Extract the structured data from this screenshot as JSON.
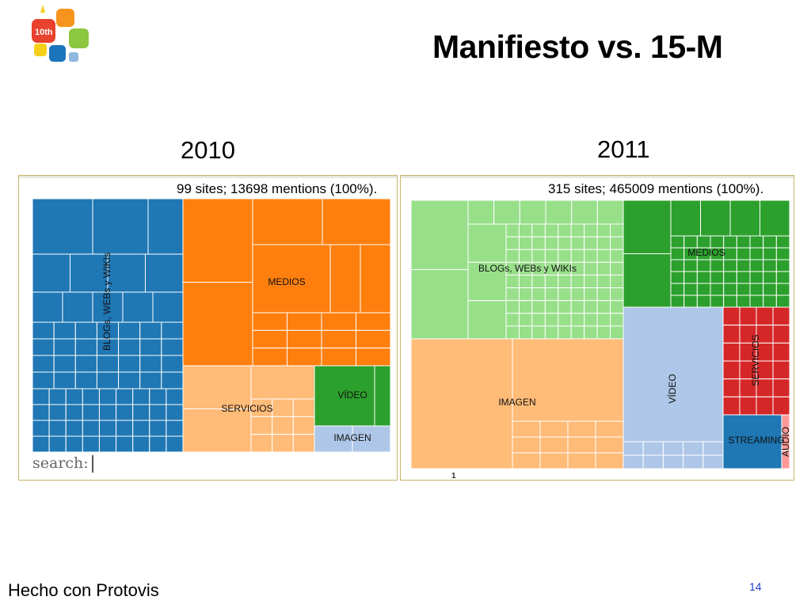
{
  "slide": {
    "title": "Manifiesto vs. 15-M",
    "page_number": "14",
    "footer": "Hecho con Protovis",
    "logo_text": "10th",
    "logo_colors": [
      "#f7941d",
      "#e8412d",
      "#8dc63f",
      "#f5d019",
      "#1b75bc",
      "#8fb8e0"
    ]
  },
  "chart_data": [
    {
      "type": "treemap",
      "year": "2010",
      "summary": "99 sites; 13698 mentions (100%).",
      "search_label": "search:",
      "categories": [
        {
          "name": "BLOGs, WEBs y WIKIs",
          "label_orientation": "vertical",
          "color": "#1f77b4"
        },
        {
          "name": "MEDIOS",
          "label_orientation": "horizontal",
          "color": "#ff7f0e"
        },
        {
          "name": "SERVICIOS",
          "label_orientation": "horizontal",
          "color": "#ffbb78"
        },
        {
          "name": "VÍDEO",
          "label_orientation": "horizontal",
          "color": "#2ca02c"
        },
        {
          "name": "IMAGEN",
          "label_orientation": "horizontal",
          "color": "#aec7e8"
        }
      ]
    },
    {
      "type": "treemap",
      "year": "2011",
      "summary": "315 sites; 465009 mentions (100%).",
      "axis_marker": "1",
      "categories": [
        {
          "name": "BLOGs, WEBs y WIKIs",
          "label_orientation": "horizontal",
          "color": "#98df8a"
        },
        {
          "name": "MEDIOS",
          "label_orientation": "horizontal",
          "color": "#2ca02c"
        },
        {
          "name": "IMAGEN",
          "label_orientation": "horizontal",
          "color": "#ffbb78"
        },
        {
          "name": "VÍDEO",
          "label_orientation": "vertical",
          "color": "#aec7e8"
        },
        {
          "name": "SERVICIOS",
          "label_orientation": "vertical",
          "color": "#d62728"
        },
        {
          "name": "STREAMING",
          "label_orientation": "horizontal",
          "color": "#1f77b4"
        },
        {
          "name": "AUDIO",
          "label_orientation": "vertical",
          "color": "#ff9896"
        }
      ]
    }
  ]
}
